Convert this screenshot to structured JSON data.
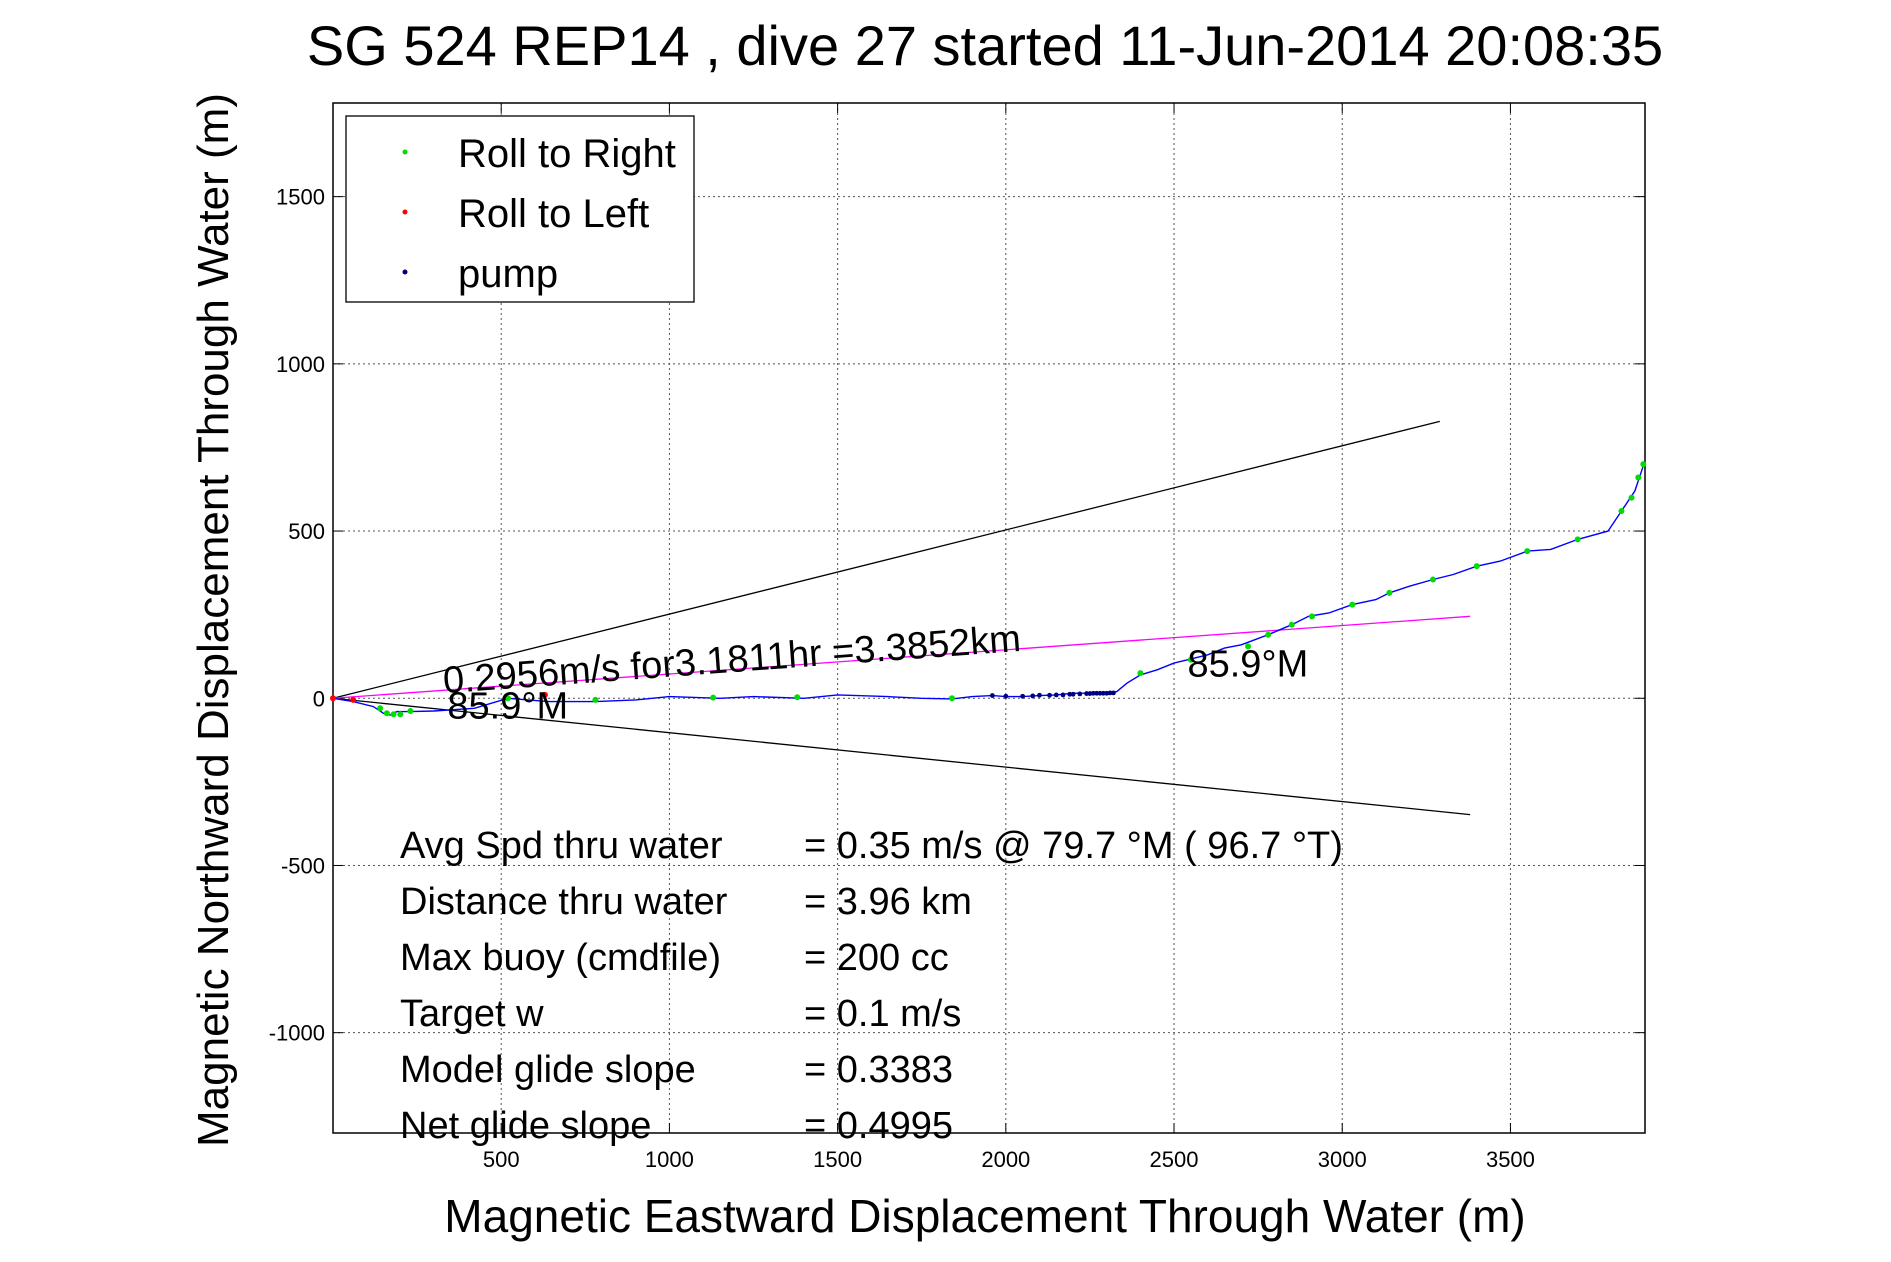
{
  "chart_data": {
    "type": "line",
    "title": "SG 524   REP14  , dive 27 started 11-Jun-2014 20:08:35",
    "xlabel": "Magnetic Eastward Displacement Through Water (m)",
    "ylabel": "Magnetic Northward Displacement Through Water (m)",
    "xlim": [
      0,
      3900
    ],
    "ylim": [
      -1300,
      1780
    ],
    "xticks": [
      500,
      1000,
      1500,
      2000,
      2500,
      3000,
      3500
    ],
    "xtick_labels": [
      "500",
      "1000",
      "1500",
      "2000",
      "2500",
      "3000",
      "3500"
    ],
    "yticks": [
      1500,
      1000,
      500,
      0,
      -500,
      -1000
    ],
    "ytick_labels": [
      "1500",
      "1000",
      "500",
      "0",
      "-500",
      "-1000"
    ],
    "grid": true,
    "legend": {
      "location": "top-left",
      "entries": [
        {
          "label": "Roll to Right",
          "color": "#00dd00"
        },
        {
          "label": "Roll to Left",
          "color": "#ff0000"
        },
        {
          "label": "pump",
          "color": "#000080"
        }
      ]
    },
    "series": [
      {
        "name": "track",
        "color": "#0000ff",
        "x": [
          0,
          60,
          120,
          150,
          170,
          190,
          230,
          300,
          420,
          520,
          640,
          780,
          900,
          1000,
          1150,
          1250,
          1400,
          1500,
          1650,
          1750,
          1840,
          1900,
          1960,
          2000,
          2050,
          2100,
          2150,
          2200,
          2250,
          2300,
          2330,
          2360,
          2400,
          2450,
          2500,
          2540,
          2600,
          2650,
          2700,
          2780,
          2850,
          2900,
          2960,
          3030,
          3100,
          3140,
          3200,
          3270,
          3330,
          3400,
          3470,
          3550,
          3620,
          3700,
          3790,
          3830,
          3870,
          3900
        ],
        "y": [
          0,
          -10,
          -25,
          -45,
          -50,
          -40,
          -40,
          -38,
          -30,
          0,
          -10,
          -10,
          -5,
          5,
          0,
          5,
          0,
          10,
          5,
          0,
          -2,
          5,
          8,
          5,
          5,
          8,
          10,
          15,
          15,
          15,
          20,
          45,
          70,
          85,
          105,
          115,
          130,
          150,
          160,
          190,
          220,
          245,
          255,
          280,
          295,
          315,
          335,
          355,
          370,
          395,
          410,
          440,
          445,
          475,
          500,
          560,
          620,
          710
        ]
      },
      {
        "name": "Roll to Right",
        "color": "#00dd00",
        "x": [
          140,
          160,
          180,
          200,
          230,
          520,
          780,
          1130,
          1380,
          1840,
          2400,
          2550,
          2720,
          2780,
          2850,
          2910,
          3030,
          3140,
          3270,
          3400,
          3550,
          3700,
          3830,
          3860,
          3880,
          3895
        ],
        "y": [
          -30,
          -45,
          -48,
          -48,
          -38,
          0,
          -5,
          2,
          3,
          0,
          75,
          115,
          155,
          190,
          220,
          245,
          280,
          315,
          355,
          395,
          440,
          475,
          560,
          600,
          660,
          700
        ]
      },
      {
        "name": "Roll to Left",
        "color": "#ff0000",
        "x": [
          0,
          60,
          630
        ],
        "y": [
          0,
          -5,
          10
        ]
      },
      {
        "name": "pump",
        "color": "#000080",
        "x": [
          1960,
          2000,
          2050,
          2080,
          2100,
          2130,
          2150,
          2170,
          2190,
          2200,
          2220,
          2240,
          2250,
          2260,
          2270,
          2280,
          2290,
          2300,
          2310,
          2320
        ],
        "y": [
          8,
          6,
          6,
          7,
          9,
          9,
          10,
          10,
          12,
          12,
          13,
          14,
          14,
          15,
          15,
          15,
          15,
          15,
          16,
          16
        ]
      }
    ],
    "reference_lines": [
      {
        "name": "upper-bound",
        "color": "#000000",
        "x": [
          0,
          3290
        ],
        "y": [
          0,
          828
        ]
      },
      {
        "name": "lower-bound",
        "color": "#000000",
        "x": [
          0,
          3380
        ],
        "y": [
          0,
          -348
        ]
      },
      {
        "name": "course-line",
        "color": "#ff00ff",
        "x": [
          0,
          3380
        ],
        "y": [
          0,
          245
        ]
      }
    ],
    "annotations": [
      {
        "name": "speed-annotation",
        "text": "0.2956m/s for3.1811hr =3.3852km",
        "x": 330,
        "y": 15,
        "rotation_deg": -4.2
      },
      {
        "name": "heading-annotation-left",
        "text": "85.9°M",
        "x": 340,
        "y": -60
      },
      {
        "name": "heading-annotation-right",
        "text": "85.9°M",
        "x": 2540,
        "y": 65
      }
    ],
    "stats": [
      {
        "label": "Avg Spd thru water",
        "value": "=  0.35 m/s @  79.7 °M ( 96.7 °T)"
      },
      {
        "label": "Distance thru water",
        "value": "=  3.96 km"
      },
      {
        "label": "Max buoy (cmdfile)",
        "value": "= 200 cc"
      },
      {
        "label": "Target w",
        "value": "= 0.1 m/s"
      },
      {
        "label": "Model glide slope",
        "value": "= 0.3383"
      },
      {
        "label": "Net glide slope",
        "value": "= 0.4995"
      }
    ]
  }
}
